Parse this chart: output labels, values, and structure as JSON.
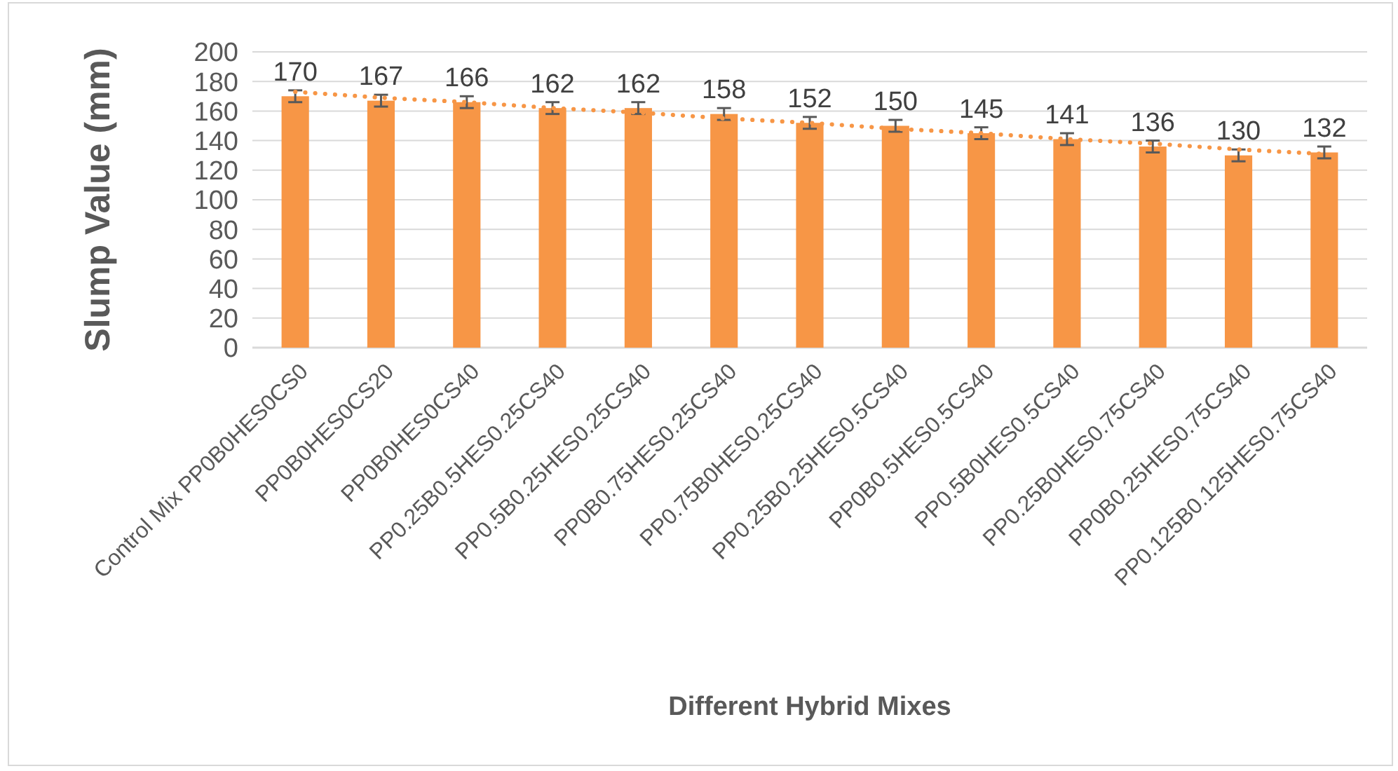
{
  "chart_data": {
    "type": "bar",
    "xlabel": "Different Hybrid Mixes",
    "ylabel": "Slump Value (mm)",
    "categories": [
      "Control Mix PP0B0HES0CS0",
      "PP0B0HES0CS20",
      "PP0B0HES0CS40",
      "PP0.25B0.5HES0.25CS40",
      "PP0.5B0.25HES0.25CS40",
      "PP0B0.75HES0.25CS40",
      "PP0.75B0HES0.25CS40",
      "PP0.25B0.25HES0.5CS40",
      "PP0B0.5HES0.5CS40",
      "PP0.5B0HES0.5CS40",
      "PP0.25B0HES0.75CS40",
      "PP0B0.25HES0.75CS40",
      "PP0.125B0.125HES0.75CS40"
    ],
    "series": [
      {
        "color": "#f79646",
        "values": [
          170,
          167,
          166,
          162,
          162,
          158,
          152,
          150,
          145,
          141,
          136,
          130,
          132
        ],
        "errors": [
          4,
          4,
          4,
          4,
          4,
          4,
          4,
          4,
          4,
          4,
          4,
          4,
          4
        ],
        "value_labels": [
          "170",
          "167",
          "166",
          "162",
          "162",
          "158",
          "152",
          "150",
          "145",
          "141",
          "136",
          "130",
          "132"
        ]
      },
      {
        "type": "line",
        "line_style": "dotted",
        "color": "#f79646",
        "values": [
          173,
          169,
          166,
          162,
          159,
          155,
          152,
          148,
          145,
          141,
          138,
          134,
          131
        ]
      }
    ],
    "ylim": [
      0,
      200
    ],
    "yticks": [
      0,
      20,
      40,
      60,
      80,
      100,
      120,
      140,
      160,
      180,
      200
    ],
    "grid": "y"
  }
}
